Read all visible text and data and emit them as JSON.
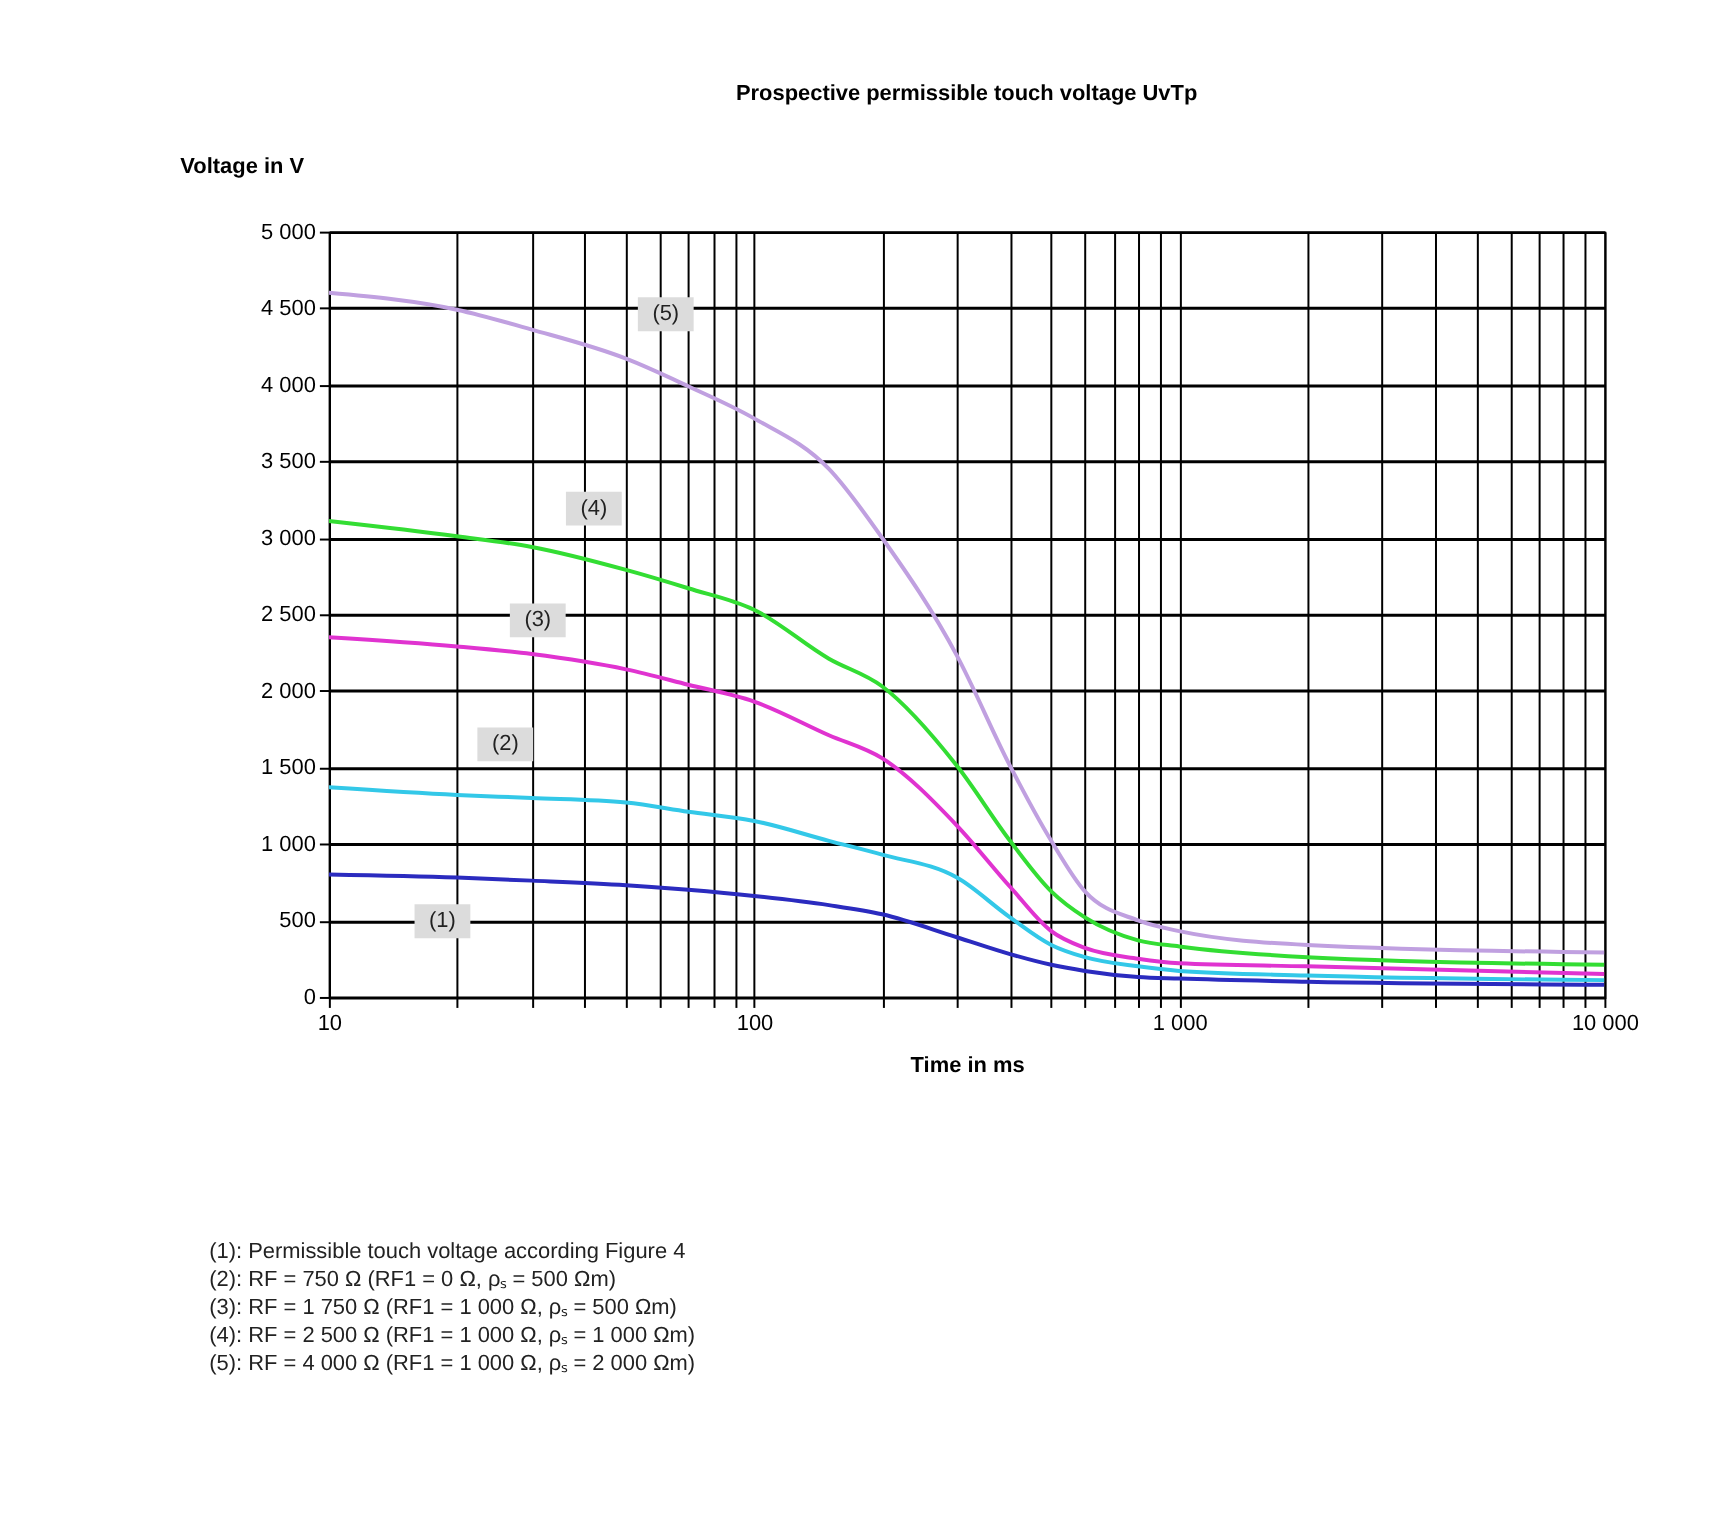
{
  "chart_data": {
    "type": "line",
    "title": "Prospective permissible touch voltage UvTp",
    "xlabel": "Time in ms",
    "ylabel": "Voltage in V",
    "x": [
      10,
      20,
      30,
      50,
      70,
      100,
      150,
      200,
      300,
      400,
      500,
      600,
      800,
      1000,
      2000,
      10000
    ],
    "series": [
      {
        "color": "#2b2bbf",
        "values": [
          800,
          780,
          760,
          730,
          700,
          660,
          600,
          540,
          390,
          280,
          210,
          170,
          130,
          120,
          100,
          80
        ]
      },
      {
        "color": "#33c8e8",
        "values": [
          1370,
          1320,
          1300,
          1270,
          1210,
          1150,
          1020,
          930,
          780,
          520,
          340,
          260,
          200,
          170,
          140,
          110
        ]
      },
      {
        "color": "#e033d0",
        "values": [
          2350,
          2290,
          2240,
          2140,
          2040,
          1930,
          1710,
          1560,
          1120,
          720,
          430,
          320,
          250,
          220,
          200,
          150
        ]
      },
      {
        "color": "#33dd33",
        "values": [
          3110,
          3010,
          2940,
          2790,
          2670,
          2530,
          2210,
          2030,
          1510,
          1020,
          690,
          520,
          370,
          330,
          260,
          210
        ]
      },
      {
        "color": "#c0a0e0",
        "values": [
          4600,
          4490,
          4360,
          4170,
          3990,
          3780,
          3450,
          3000,
          2230,
          1510,
          1020,
          690,
          500,
          430,
          340,
          290
        ]
      }
    ],
    "log": "x",
    "grid": true,
    "line_style": "solid",
    "marker": "none",
    "xlim": [
      10,
      10000
    ],
    "xticks": [
      {
        "value": 10,
        "label": "10"
      },
      {
        "value": 20,
        "label": null
      },
      {
        "value": 30,
        "label": null
      },
      {
        "value": 40,
        "label": null
      },
      {
        "value": 50,
        "label": null
      },
      {
        "value": 60,
        "label": null
      },
      {
        "value": 70,
        "label": null
      },
      {
        "value": 80,
        "label": null
      },
      {
        "value": 90,
        "label": null
      },
      {
        "value": 100,
        "label": "100"
      },
      {
        "value": 200,
        "label": null
      },
      {
        "value": 300,
        "label": null
      },
      {
        "value": 400,
        "label": null
      },
      {
        "value": 500,
        "label": null
      },
      {
        "value": 600,
        "label": null
      },
      {
        "value": 700,
        "label": null
      },
      {
        "value": 800,
        "label": null
      },
      {
        "value": 900,
        "label": null
      },
      {
        "value": 1000,
        "label": "1 000"
      },
      {
        "value": 2000,
        "label": null
      },
      {
        "value": 3000,
        "label": null
      },
      {
        "value": 4000,
        "label": null
      },
      {
        "value": 5000,
        "label": null
      },
      {
        "value": 6000,
        "label": null
      },
      {
        "value": 7000,
        "label": null
      },
      {
        "value": 8000,
        "label": null
      },
      {
        "value": 9000,
        "label": null
      },
      {
        "value": 10000,
        "label": "10 000"
      }
    ],
    "ylim": [
      0,
      5000
    ],
    "yticks": [
      0,
      500,
      {
        "value": 1000,
        "label": "1 000"
      },
      {
        "value": 1500,
        "label": "1 500"
      },
      {
        "value": 2000,
        "label": "2 000"
      },
      {
        "value": 2500,
        "label": "2 500"
      },
      {
        "value": 3000,
        "label": "3 000"
      },
      {
        "value": 3500,
        "label": "3 500"
      },
      {
        "value": 4000,
        "label": "4 000"
      },
      {
        "value": 4500,
        "label": "4 500"
      },
      {
        "value": 5000,
        "label": "5 000"
      }
    ],
    "annotations": [
      {
        "text": "(1)",
        "x": 18.5,
        "y": 495
      },
      {
        "text": "(2)",
        "x": 26,
        "y": 1650
      },
      {
        "text": "(3)",
        "x": 31,
        "y": 2460
      },
      {
        "text": "(4)",
        "x": 42,
        "y": 3190
      },
      {
        "text": "(5)",
        "x": 62,
        "y": 4460
      },
      "(1):      Permissible touch voltage according Figure 4",
      "(2):      RF =      750 Ω (RF1 =   0 Ω,      ρₛ =            500 Ωm)",
      "(3):      RF =      1 750 Ω         (RF1 =   1 000 Ω,     ρₛ =   500 Ωm)",
      "(4):      RF =      2 500 Ω         (RF1 =   1 000 Ω,     ρₛ =   1 000 Ωm)",
      "(5):      RF =      4 000 Ω         (RF1 =   1 000 Ω,     ρₛ =   2 000 Ωm)"
    ]
  }
}
